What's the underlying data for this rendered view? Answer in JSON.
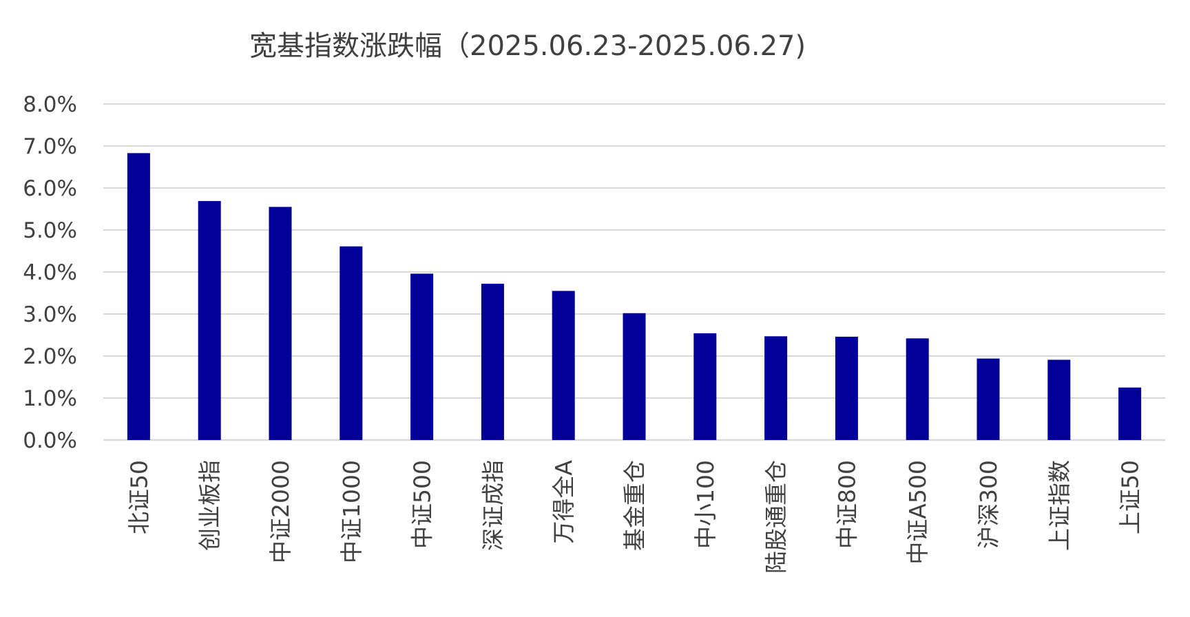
{
  "chart_data": {
    "type": "bar",
    "title": "宽基指数涨跌幅（2025.06.23-2025.06.27)",
    "xlabel": "",
    "ylabel": "",
    "ylim": [
      0,
      8
    ],
    "y_unit": "%",
    "y_ticks": [
      "0.0%",
      "1.0%",
      "2.0%",
      "3.0%",
      "4.0%",
      "5.0%",
      "6.0%",
      "7.0%",
      "8.0%"
    ],
    "grid": true,
    "legend": "none",
    "bar_color": "#000099",
    "grid_color": "#d9d9d9",
    "categories": [
      "北证50",
      "创业板指",
      "中证2000",
      "中证1000",
      "中证500",
      "深证成指",
      "万得全A",
      "基金重仓",
      "中小100",
      "陆股通重仓",
      "中证800",
      "中证A500",
      "沪深300",
      "上证指数",
      "上证50"
    ],
    "values": [
      6.83,
      5.69,
      5.55,
      4.61,
      3.96,
      3.72,
      3.55,
      3.02,
      2.54,
      2.47,
      2.46,
      2.42,
      1.94,
      1.91,
      1.25
    ]
  }
}
